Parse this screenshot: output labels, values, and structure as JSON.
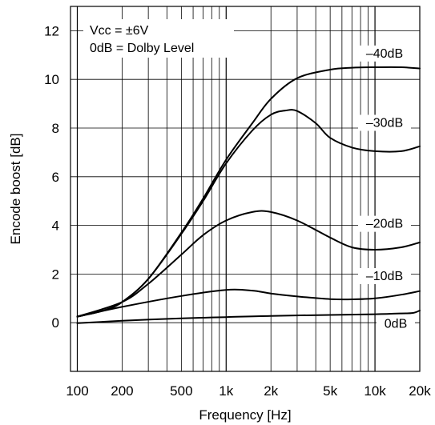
{
  "chart_data": {
    "type": "line",
    "title": "",
    "xlabel": "Frequency [Hz]",
    "ylabel": "Encode boost [dB]",
    "x_scale": "log",
    "xlim": [
      90,
      20000
    ],
    "ylim": [
      -2,
      13
    ],
    "grid": true,
    "x_ticks": [
      100,
      200,
      500,
      1000,
      2000,
      5000,
      10000,
      20000
    ],
    "x_tick_labels": [
      "100",
      "200",
      "500",
      "1k",
      "2k",
      "5k",
      "10k",
      "20k"
    ],
    "y_ticks": [
      0,
      2,
      4,
      6,
      8,
      10,
      12
    ],
    "y_tick_labels": [
      "0",
      "2",
      "4",
      "6",
      "8",
      "10",
      "12"
    ],
    "annotations": [
      "Vcc = ±6V",
      "0dB = Dolby Level"
    ],
    "series": [
      {
        "name": "–40dB",
        "x": [
          100,
          150,
          200,
          300,
          500,
          700,
          1000,
          1500,
          2000,
          3000,
          5000,
          7000,
          10000,
          15000,
          20000
        ],
        "values": [
          0.25,
          0.5,
          0.85,
          1.8,
          3.7,
          5.1,
          6.7,
          8.2,
          9.2,
          10.05,
          10.4,
          10.48,
          10.5,
          10.5,
          10.45
        ]
      },
      {
        "name": "–30dB",
        "x": [
          100,
          150,
          200,
          300,
          500,
          700,
          1000,
          1500,
          2000,
          2500,
          3000,
          4000,
          5000,
          7000,
          10000,
          15000,
          20000
        ],
        "values": [
          0.25,
          0.5,
          0.85,
          1.8,
          3.65,
          5.0,
          6.55,
          7.9,
          8.55,
          8.72,
          8.7,
          8.2,
          7.6,
          7.2,
          7.05,
          7.05,
          7.25
        ]
      },
      {
        "name": "–20dB",
        "x": [
          100,
          200,
          300,
          500,
          700,
          1000,
          1500,
          2000,
          3000,
          5000,
          7000,
          10000,
          15000,
          20000
        ],
        "values": [
          0.25,
          0.85,
          1.6,
          2.8,
          3.6,
          4.2,
          4.55,
          4.55,
          4.2,
          3.5,
          3.1,
          3.0,
          3.1,
          3.3
        ]
      },
      {
        "name": "–10dB",
        "x": [
          100,
          200,
          500,
          1000,
          1500,
          2000,
          3000,
          5000,
          7000,
          10000,
          15000,
          20000
        ],
        "values": [
          0.25,
          0.65,
          1.1,
          1.35,
          1.32,
          1.2,
          1.08,
          0.97,
          0.96,
          1.0,
          1.15,
          1.3
        ]
      },
      {
        "name": "0dB",
        "x": [
          100,
          200,
          500,
          1000,
          2000,
          5000,
          10000,
          15000,
          18000,
          20000
        ],
        "values": [
          -0.02,
          0.08,
          0.18,
          0.23,
          0.28,
          0.32,
          0.35,
          0.38,
          0.4,
          0.5
        ]
      }
    ]
  }
}
